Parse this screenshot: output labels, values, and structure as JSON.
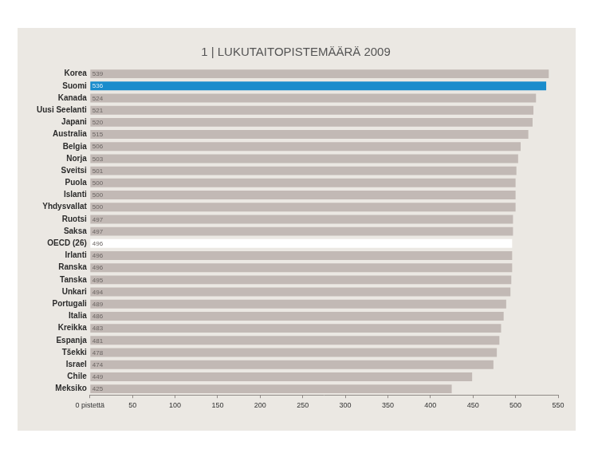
{
  "chart_data": {
    "type": "bar",
    "title": "1 | LUKUTAITOPISTEMÄÄRÄ 2009",
    "orientation": "horizontal",
    "categories": [
      "Korea",
      "Suomi",
      "Kanada",
      "Uusi Seelanti",
      "Japani",
      "Australia",
      "Belgia",
      "Norja",
      "Sveitsi",
      "Puola",
      "Islanti",
      "Yhdysvallat",
      "Ruotsi",
      "Saksa",
      "OECD (26)",
      "Irlanti",
      "Ranska",
      "Tanska",
      "Unkari",
      "Portugali",
      "Italia",
      "Kreikka",
      "Espanja",
      "Tšekki",
      "Israel",
      "Chile",
      "Meksiko"
    ],
    "values": [
      539,
      536,
      524,
      521,
      520,
      515,
      506,
      503,
      501,
      500,
      500,
      500,
      497,
      497,
      496,
      496,
      496,
      495,
      494,
      489,
      486,
      483,
      481,
      478,
      474,
      449,
      425
    ],
    "colors": [
      "#c2b9b5",
      "#1a8ccc",
      "#c2b9b5",
      "#c2b9b5",
      "#c2b9b5",
      "#c2b9b5",
      "#c2b9b5",
      "#c2b9b5",
      "#c2b9b5",
      "#c2b9b5",
      "#c2b9b5",
      "#c2b9b5",
      "#c2b9b5",
      "#c2b9b5",
      "#ffffff",
      "#c2b9b5",
      "#c2b9b5",
      "#c2b9b5",
      "#c2b9b5",
      "#c2b9b5",
      "#c2b9b5",
      "#c2b9b5",
      "#c2b9b5",
      "#c2b9b5",
      "#c2b9b5",
      "#c2b9b5",
      "#c2b9b5"
    ],
    "xlim": [
      0,
      550
    ],
    "xticks": [
      {
        "value": 0,
        "label": "0 pistettä"
      },
      50,
      100,
      150,
      200,
      250,
      300,
      350,
      400,
      450,
      500,
      550
    ],
    "grid": false,
    "data_labels": true
  }
}
